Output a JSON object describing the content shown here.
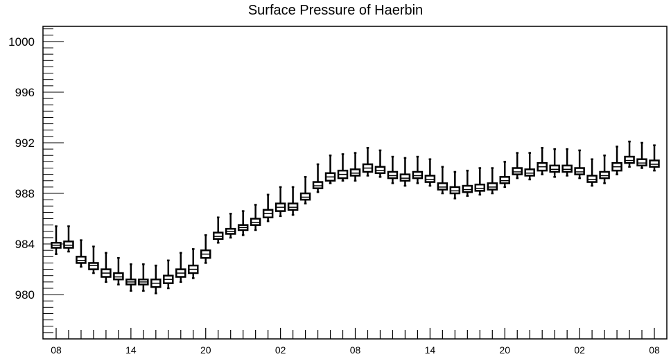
{
  "chart_data": {
    "type": "box",
    "title": "Surface Pressure of Haerbin",
    "xlabel": "",
    "ylabel": "",
    "ylim": [
      976.5,
      1001.2
    ],
    "y_ticks": [
      980,
      984,
      988,
      992,
      996,
      1000
    ],
    "x_tick_labels": [
      "08",
      "14",
      "20",
      "02",
      "08",
      "14",
      "20",
      "02",
      "08"
    ],
    "x_tick_positions": [
      0,
      6,
      12,
      18,
      24,
      30,
      36,
      42,
      48
    ],
    "x": [
      0,
      1,
      2,
      3,
      4,
      5,
      6,
      7,
      8,
      9,
      10,
      11,
      12,
      13,
      14,
      15,
      16,
      17,
      18,
      19,
      20,
      21,
      22,
      23,
      24,
      25,
      26,
      27,
      28,
      29,
      30,
      31,
      32,
      33,
      34,
      35,
      36,
      37,
      38,
      39,
      40,
      41,
      42,
      43,
      44,
      45,
      46,
      47,
      48
    ],
    "grid": false,
    "series": [
      {
        "median": [
          983.9,
          983.9,
          982.7,
          982.3,
          981.7,
          981.4,
          981.0,
          981.0,
          980.9,
          981.2,
          981.7,
          982.0,
          983.2,
          984.6,
          985.0,
          985.3,
          985.7,
          986.4,
          986.9,
          986.9,
          987.7,
          988.6,
          989.3,
          989.5,
          989.6,
          990.0,
          989.8,
          989.4,
          989.2,
          989.4,
          989.1,
          988.5,
          988.2,
          988.3,
          988.4,
          988.5,
          989.0,
          989.7,
          989.6,
          990.1,
          989.9,
          989.9,
          989.7,
          989.1,
          989.4,
          990.1,
          990.6,
          990.4,
          990.3
        ],
        "q1": [
          983.7,
          983.7,
          982.5,
          982.0,
          981.4,
          981.2,
          980.8,
          980.8,
          980.6,
          980.9,
          981.4,
          981.7,
          982.9,
          984.4,
          984.8,
          985.1,
          985.5,
          986.1,
          986.6,
          986.7,
          987.5,
          988.4,
          989.0,
          989.2,
          989.4,
          989.7,
          989.6,
          989.2,
          989.0,
          989.2,
          988.9,
          988.3,
          988.0,
          988.1,
          988.2,
          988.3,
          988.8,
          989.5,
          989.4,
          989.8,
          989.7,
          989.7,
          989.5,
          988.9,
          989.2,
          989.8,
          990.4,
          990.2,
          990.1
        ],
        "q3": [
          984.1,
          984.2,
          983.0,
          982.5,
          982.0,
          981.7,
          981.2,
          981.2,
          981.2,
          981.5,
          982.0,
          982.3,
          983.5,
          984.9,
          985.2,
          985.5,
          986.0,
          986.7,
          987.2,
          987.2,
          988.0,
          988.9,
          989.6,
          989.8,
          989.9,
          990.3,
          990.1,
          989.7,
          989.5,
          989.7,
          989.4,
          988.8,
          988.5,
          988.6,
          988.7,
          988.8,
          989.3,
          990.0,
          989.9,
          990.4,
          990.2,
          990.2,
          990.0,
          989.4,
          989.7,
          990.4,
          990.9,
          990.7,
          990.6
        ],
        "whisker_low": [
          983.2,
          983.4,
          982.2,
          981.7,
          981.0,
          980.8,
          980.3,
          980.3,
          980.1,
          980.5,
          981.0,
          981.3,
          982.5,
          984.1,
          984.5,
          984.7,
          985.1,
          985.8,
          986.2,
          986.3,
          987.2,
          988.1,
          988.8,
          989.0,
          989.0,
          989.4,
          989.3,
          988.8,
          988.6,
          988.8,
          988.6,
          988.0,
          987.6,
          987.8,
          987.9,
          988.0,
          988.5,
          989.2,
          989.1,
          989.5,
          989.3,
          989.4,
          989.2,
          988.6,
          988.8,
          989.5,
          990.1,
          990.0,
          989.8
        ],
        "whisker_high": [
          985.4,
          985.4,
          984.3,
          983.8,
          983.3,
          982.9,
          982.4,
          982.4,
          982.3,
          982.7,
          983.3,
          983.6,
          984.7,
          986.1,
          986.4,
          986.6,
          987.1,
          987.9,
          988.5,
          988.5,
          989.3,
          990.3,
          991.0,
          991.1,
          991.2,
          991.6,
          991.4,
          990.9,
          990.8,
          990.9,
          990.7,
          990.1,
          989.7,
          989.8,
          990.0,
          990.0,
          990.5,
          991.2,
          991.2,
          991.6,
          991.5,
          991.5,
          991.4,
          990.7,
          991.0,
          991.7,
          992.1,
          992.0,
          991.8
        ]
      }
    ]
  },
  "colors": {
    "background": "#ffffff",
    "stroke": "#000000"
  }
}
